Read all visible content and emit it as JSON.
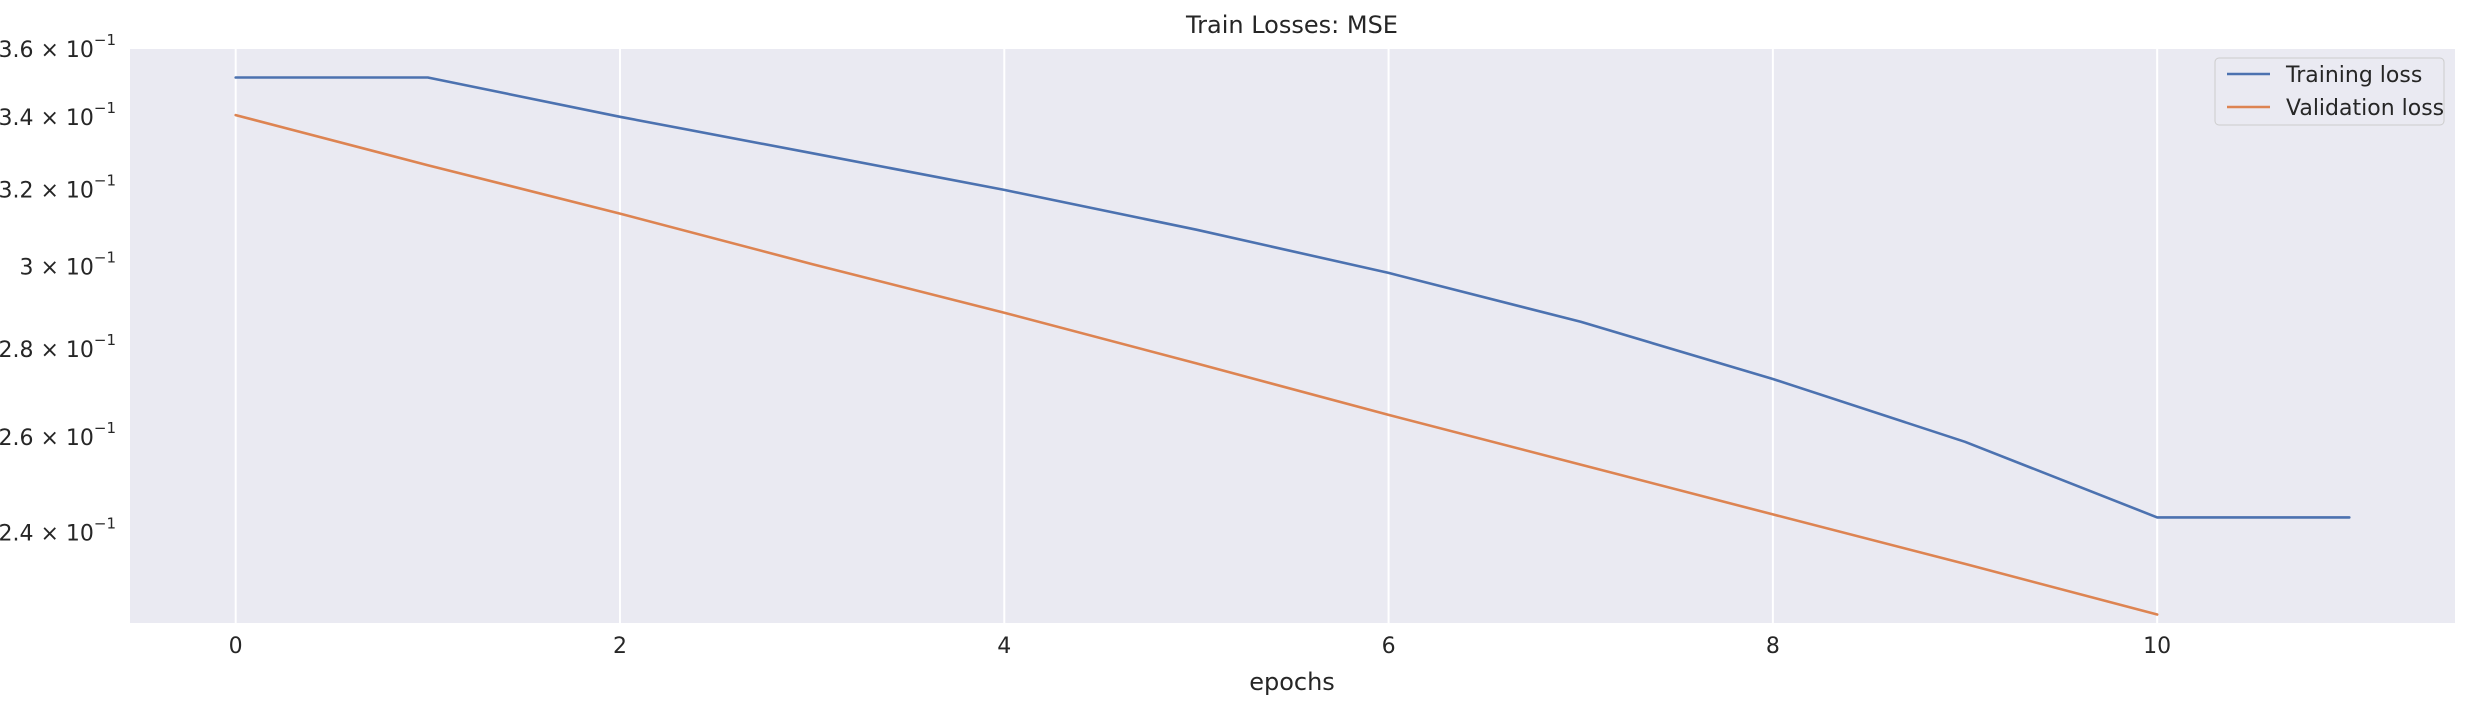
{
  "chart_data": {
    "type": "line",
    "title": "Train Losses:  MSE",
    "xlabel": "epochs",
    "ylabel": "",
    "yscale": "log",
    "xlim": [
      -0.55,
      11.55
    ],
    "ylim": [
      0.2225,
      0.36
    ],
    "grid": "x-only",
    "background": "#eaeaf2",
    "legend_position": "top-right",
    "x_ticks": [
      0,
      2,
      4,
      6,
      8,
      10
    ],
    "x_tick_labels": [
      "0",
      "2",
      "4",
      "6",
      "8",
      "10"
    ],
    "y_ticks": [
      {
        "value": 0.36,
        "mantissa": "3.6",
        "base": "10",
        "exp": "−1"
      },
      {
        "value": 0.34,
        "mantissa": "3.4",
        "base": "10",
        "exp": "−1"
      },
      {
        "value": 0.32,
        "mantissa": "3.2",
        "base": "10",
        "exp": "−1"
      },
      {
        "value": 0.3,
        "mantissa": "3",
        "base": "10",
        "exp": "−1"
      },
      {
        "value": 0.28,
        "mantissa": "2.8",
        "base": "10",
        "exp": "−1"
      },
      {
        "value": 0.26,
        "mantissa": "2.6",
        "base": "10",
        "exp": "−1"
      },
      {
        "value": 0.24,
        "mantissa": "2.4",
        "base": "10",
        "exp": "−1"
      }
    ],
    "series": [
      {
        "name": "Training loss",
        "color": "#4c72b0",
        "x": [
          0,
          1,
          2,
          3,
          4,
          5,
          6,
          7,
          8,
          9,
          10,
          11
        ],
        "y": [
          0.3515,
          0.3515,
          0.3401,
          0.3299,
          0.3199,
          0.3094,
          0.2984,
          0.2864,
          0.273,
          0.259,
          0.2431,
          0.2431
        ]
      },
      {
        "name": "Validation loss",
        "color": "#dd8452",
        "x": [
          0,
          1,
          2,
          3,
          4,
          5,
          6,
          7,
          8,
          9,
          10
        ],
        "y": [
          0.3406,
          0.3266,
          0.3136,
          0.3006,
          0.2886,
          0.2766,
          0.2649,
          0.2541,
          0.2437,
          0.2338,
          0.2241
        ]
      }
    ]
  }
}
